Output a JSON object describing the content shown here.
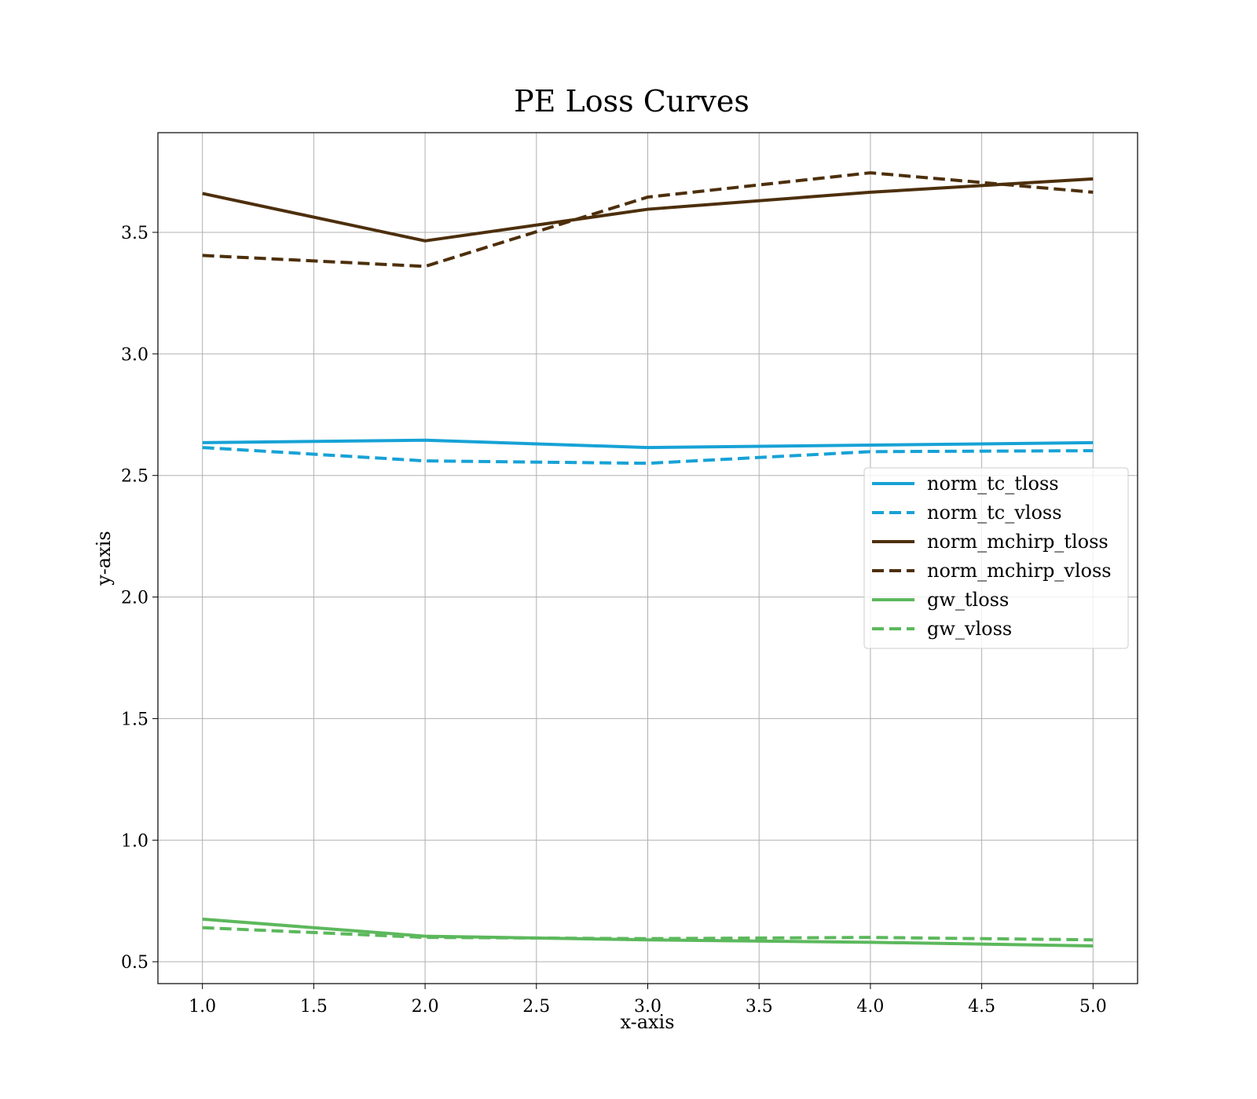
{
  "chart_data": {
    "type": "line",
    "title": "PE Loss Curves",
    "xlabel": "x-axis",
    "ylabel": "y-axis",
    "xlim": [
      0.8,
      5.2
    ],
    "ylim": [
      0.41,
      3.91
    ],
    "xticks": [
      "1.0",
      "1.5",
      "2.0",
      "2.5",
      "3.0",
      "3.5",
      "4.0",
      "4.5",
      "5.0"
    ],
    "yticks": [
      "0.5",
      "1.0",
      "1.5",
      "2.0",
      "2.5",
      "3.0",
      "3.5"
    ],
    "grid": true,
    "legend_position": "center-right",
    "x": [
      1,
      2,
      3,
      4,
      5
    ],
    "series": [
      {
        "name": "norm_tc_tloss",
        "values": [
          2.635,
          2.645,
          2.615,
          2.625,
          2.635
        ],
        "color": "#17a2d6",
        "dash": "solid"
      },
      {
        "name": "norm_tc_vloss",
        "values": [
          2.615,
          2.56,
          2.55,
          2.598,
          2.602
        ],
        "color": "#17a2d6",
        "dash": "dashed"
      },
      {
        "name": "norm_mchirp_tloss",
        "values": [
          3.66,
          3.465,
          3.595,
          3.665,
          3.72
        ],
        "color": "#4d2f0c",
        "dash": "solid"
      },
      {
        "name": "norm_mchirp_vloss",
        "values": [
          3.405,
          3.36,
          3.645,
          3.745,
          3.665
        ],
        "color": "#4d2f0c",
        "dash": "dashed"
      },
      {
        "name": "gw_tloss",
        "values": [
          0.675,
          0.605,
          0.59,
          0.58,
          0.565
        ],
        "color": "#5cb85c",
        "dash": "solid"
      },
      {
        "name": "gw_vloss",
        "values": [
          0.64,
          0.6,
          0.595,
          0.6,
          0.59
        ],
        "color": "#5cb85c",
        "dash": "dashed"
      }
    ]
  }
}
